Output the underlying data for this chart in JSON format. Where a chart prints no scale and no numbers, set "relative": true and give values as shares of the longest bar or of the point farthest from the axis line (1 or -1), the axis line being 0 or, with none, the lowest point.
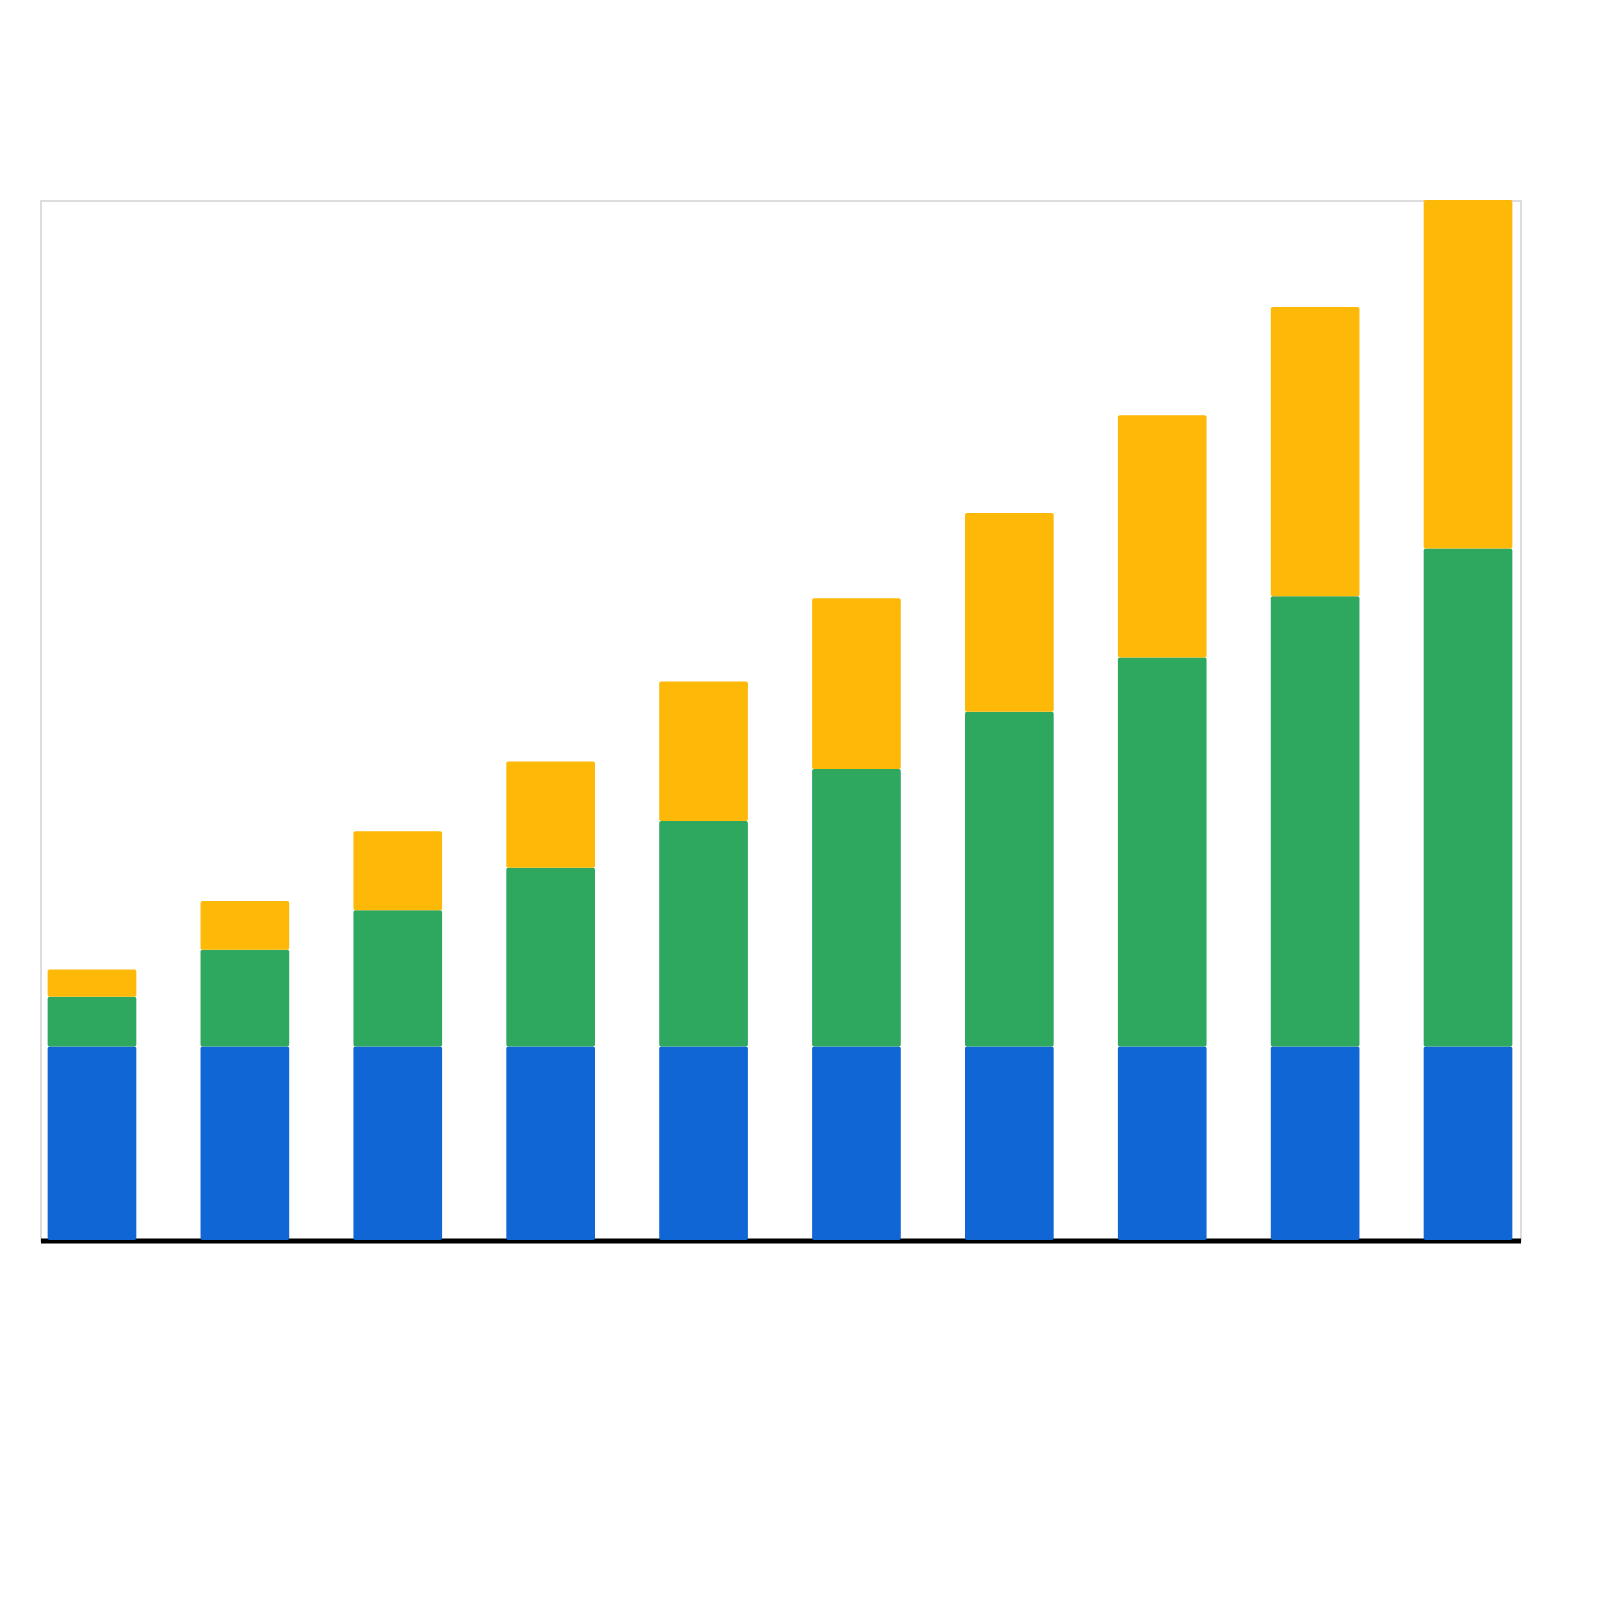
{
  "chart_data": {
    "type": "bar",
    "stacked": true,
    "relative": true,
    "tick_labels": false,
    "grid": false,
    "legend": false,
    "categories": [
      null,
      null,
      null,
      null,
      null,
      null,
      null,
      null,
      null,
      null
    ],
    "series": [
      {
        "color": "#1166d6",
        "values": [
          0.186,
          0.186,
          0.186,
          0.186,
          0.186,
          0.186,
          0.186,
          0.186,
          0.186,
          0.186
        ]
      },
      {
        "color": "#2ea75f",
        "values": [
          0.048,
          0.093,
          0.131,
          0.172,
          0.217,
          0.267,
          0.322,
          0.374,
          0.433,
          0.479
        ]
      },
      {
        "color": "#fdb808",
        "values": [
          0.026,
          0.047,
          0.076,
          0.102,
          0.134,
          0.164,
          0.191,
          0.233,
          0.278,
          0.335
        ]
      }
    ]
  }
}
